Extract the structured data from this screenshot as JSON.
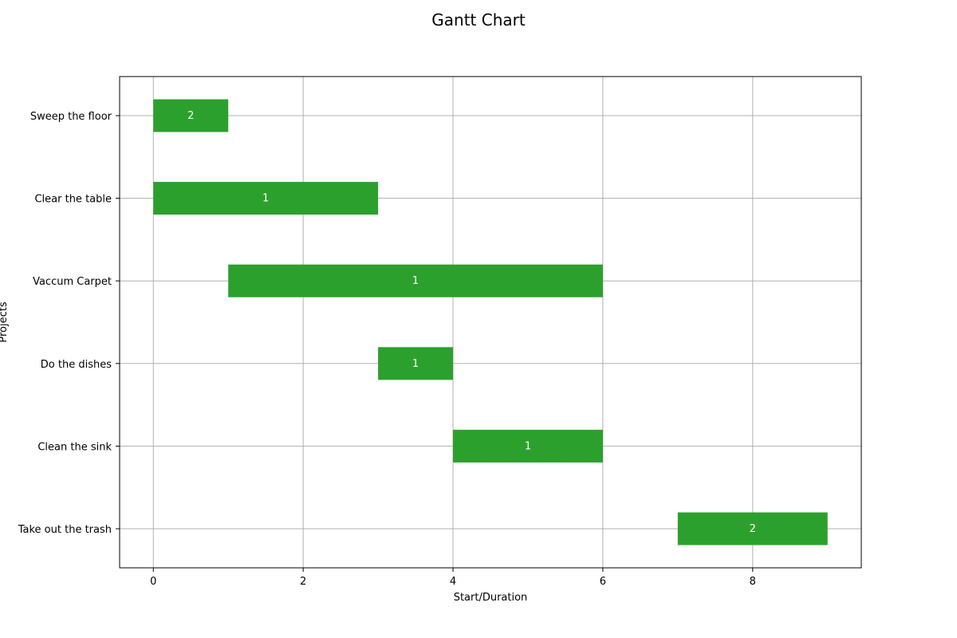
{
  "chart_data": {
    "type": "bar",
    "orientation": "horizontal",
    "title": "Gantt Chart",
    "xlabel": "Start/Duration",
    "ylabel": "Projects",
    "xlim": [
      -0.45,
      9.45
    ],
    "xticks": [
      0,
      2,
      4,
      6,
      8
    ],
    "grid": true,
    "bar_color": "#2ca02c",
    "label_color": "#ffffff",
    "tasks": [
      {
        "name": "Sweep the floor",
        "start": 0,
        "duration": 1,
        "label": "2"
      },
      {
        "name": "Clear the table",
        "start": 0,
        "duration": 3,
        "label": "1"
      },
      {
        "name": "Vaccum Carpet",
        "start": 1,
        "duration": 5,
        "label": "1"
      },
      {
        "name": "Do the dishes",
        "start": 3,
        "duration": 1,
        "label": "1"
      },
      {
        "name": "Clean the sink",
        "start": 4,
        "duration": 2,
        "label": "1"
      },
      {
        "name": "Take out the trash",
        "start": 7,
        "duration": 2,
        "label": "2"
      }
    ]
  }
}
